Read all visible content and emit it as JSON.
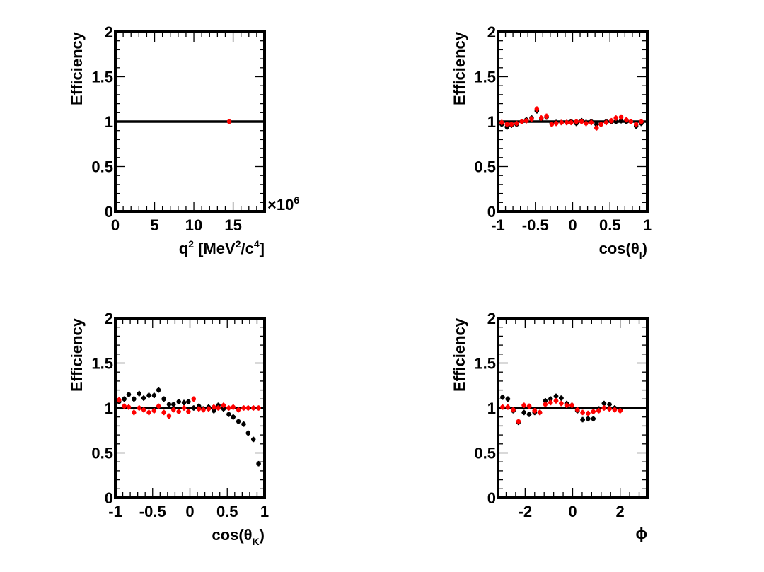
{
  "colors": {
    "series_black": "#000000",
    "series_red": "#ff0000",
    "reference_line": "#000000"
  },
  "chart_data": [
    {
      "type": "scatter",
      "panel": "top-left",
      "ylabel": "Efficiency",
      "xlabel_parts": {
        "base": "q",
        "sup1": "2",
        "mid": " [MeV",
        "sup2": "2",
        "mid2": "/c",
        "sup3": "4",
        "end": "]"
      },
      "x_multiplier_text": {
        "base": "×10",
        "exp": "6"
      },
      "xlim": [
        0,
        19
      ],
      "ylim": [
        0,
        2
      ],
      "x_major_ticks": [
        0,
        5,
        10,
        15
      ],
      "x_tick_labels": [
        "0",
        "5",
        "10",
        "15"
      ],
      "y_major_ticks": [
        0,
        0.5,
        1,
        1.5,
        2
      ],
      "y_tick_labels": [
        "0",
        "0.5",
        "1",
        "1.5",
        "2"
      ],
      "reference_y": 1,
      "series": [
        {
          "color": "#000000",
          "xerr": 0,
          "points": [
            [
              14.5,
              1.0,
              0.0
            ]
          ]
        },
        {
          "color": "#ff0000",
          "xerr": 0,
          "points": [
            [
              14.5,
              1.0,
              0.0
            ]
          ]
        }
      ]
    },
    {
      "type": "scatter",
      "panel": "top-right",
      "ylabel": "Efficiency",
      "xlabel_parts": {
        "base": "cos(θ",
        "sub": "l",
        "end": ")"
      },
      "xlim": [
        -1,
        1
      ],
      "ylim": [
        0,
        2
      ],
      "x_major_ticks": [
        -1,
        -0.5,
        0,
        0.5,
        1
      ],
      "x_tick_labels": [
        "-1",
        "-0.5",
        "0",
        "0.5",
        "1"
      ],
      "y_major_ticks": [
        0,
        0.5,
        1,
        1.5,
        2
      ],
      "y_tick_labels": [
        "0",
        "0.5",
        "1",
        "1.5",
        "2"
      ],
      "reference_y": 1,
      "series": [
        {
          "color": "#000000",
          "xerr": 0.03,
          "points": [
            [
              -0.95,
              0.97,
              0.03
            ],
            [
              -0.88,
              0.94,
              0.03
            ],
            [
              -0.82,
              0.96,
              0.03
            ],
            [
              -0.75,
              0.97,
              0.03
            ],
            [
              -0.68,
              1.0,
              0.03
            ],
            [
              -0.62,
              1.02,
              0.03
            ],
            [
              -0.55,
              1.04,
              0.03
            ],
            [
              -0.48,
              1.12,
              0.03
            ],
            [
              -0.42,
              1.03,
              0.03
            ],
            [
              -0.35,
              1.05,
              0.03
            ],
            [
              -0.28,
              0.98,
              0.03
            ],
            [
              -0.22,
              0.99,
              0.03
            ],
            [
              -0.15,
              0.99,
              0.03
            ],
            [
              -0.08,
              0.99,
              0.03
            ],
            [
              -0.02,
              1.0,
              0.03
            ],
            [
              0.05,
              0.98,
              0.03
            ],
            [
              0.12,
              1.01,
              0.03
            ],
            [
              0.18,
              0.99,
              0.03
            ],
            [
              0.25,
              1.0,
              0.03
            ],
            [
              0.32,
              0.97,
              0.03
            ],
            [
              0.38,
              0.97,
              0.03
            ],
            [
              0.45,
              1.0,
              0.03
            ],
            [
              0.52,
              1.0,
              0.03
            ],
            [
              0.58,
              1.0,
              0.03
            ],
            [
              0.65,
              1.01,
              0.03
            ],
            [
              0.72,
              1.0,
              0.03
            ],
            [
              0.78,
              1.0,
              0.03
            ],
            [
              0.85,
              0.95,
              0.03
            ],
            [
              0.92,
              0.98,
              0.03
            ]
          ]
        },
        {
          "color": "#ff0000",
          "xerr": 0.03,
          "points": [
            [
              -0.95,
              0.99,
              0.03
            ],
            [
              -0.88,
              0.97,
              0.03
            ],
            [
              -0.82,
              0.97,
              0.03
            ],
            [
              -0.75,
              0.98,
              0.03
            ],
            [
              -0.68,
              1.0,
              0.03
            ],
            [
              -0.62,
              1.01,
              0.03
            ],
            [
              -0.55,
              1.03,
              0.03
            ],
            [
              -0.48,
              1.14,
              0.03
            ],
            [
              -0.42,
              1.04,
              0.03
            ],
            [
              -0.35,
              1.06,
              0.03
            ],
            [
              -0.28,
              0.97,
              0.03
            ],
            [
              -0.22,
              0.98,
              0.03
            ],
            [
              -0.15,
              0.99,
              0.03
            ],
            [
              -0.08,
              0.99,
              0.03
            ],
            [
              -0.02,
              0.99,
              0.03
            ],
            [
              0.05,
              1.0,
              0.03
            ],
            [
              0.12,
              1.0,
              0.03
            ],
            [
              0.18,
              0.98,
              0.03
            ],
            [
              0.25,
              0.99,
              0.03
            ],
            [
              0.32,
              0.93,
              0.03
            ],
            [
              0.38,
              0.97,
              0.03
            ],
            [
              0.45,
              0.99,
              0.03
            ],
            [
              0.52,
              1.01,
              0.03
            ],
            [
              0.58,
              1.04,
              0.03
            ],
            [
              0.65,
              1.05,
              0.03
            ],
            [
              0.72,
              1.02,
              0.03
            ],
            [
              0.78,
              1.0,
              0.03
            ],
            [
              0.85,
              0.97,
              0.03
            ],
            [
              0.92,
              1.0,
              0.03
            ]
          ]
        }
      ]
    },
    {
      "type": "scatter",
      "panel": "bottom-left",
      "ylabel": "Efficiency",
      "xlabel_parts": {
        "base": "cos(θ",
        "sub": "K",
        "end": ")"
      },
      "xlim": [
        -1,
        1
      ],
      "ylim": [
        0,
        2
      ],
      "x_major_ticks": [
        -1,
        -0.5,
        0,
        0.5,
        1
      ],
      "x_tick_labels": [
        "-1",
        "-0.5",
        "0",
        "0.5",
        "1"
      ],
      "y_major_ticks": [
        0,
        0.5,
        1,
        1.5,
        2
      ],
      "y_tick_labels": [
        "0",
        "0.5",
        "1",
        "1.5",
        "2"
      ],
      "reference_y": 1,
      "series": [
        {
          "color": "#000000",
          "xerr": 0.03,
          "points": [
            [
              -0.95,
              1.07,
              0.03
            ],
            [
              -0.88,
              1.1,
              0.03
            ],
            [
              -0.82,
              1.15,
              0.03
            ],
            [
              -0.75,
              1.1,
              0.03
            ],
            [
              -0.68,
              1.16,
              0.03
            ],
            [
              -0.62,
              1.11,
              0.03
            ],
            [
              -0.55,
              1.14,
              0.03
            ],
            [
              -0.48,
              1.14,
              0.03
            ],
            [
              -0.42,
              1.2,
              0.03
            ],
            [
              -0.35,
              1.1,
              0.03
            ],
            [
              -0.28,
              1.04,
              0.03
            ],
            [
              -0.22,
              1.04,
              0.03
            ],
            [
              -0.15,
              1.07,
              0.03
            ],
            [
              -0.08,
              1.06,
              0.03
            ],
            [
              -0.02,
              1.07,
              0.03
            ],
            [
              0.05,
              1.0,
              0.03
            ],
            [
              0.12,
              1.02,
              0.03
            ],
            [
              0.18,
              0.99,
              0.03
            ],
            [
              0.25,
              1.01,
              0.03
            ],
            [
              0.32,
              0.97,
              0.03
            ],
            [
              0.38,
              1.03,
              0.03
            ],
            [
              0.45,
              0.99,
              0.03
            ],
            [
              0.52,
              0.93,
              0.03
            ],
            [
              0.58,
              0.9,
              0.03
            ],
            [
              0.65,
              0.85,
              0.03
            ],
            [
              0.72,
              0.82,
              0.03
            ],
            [
              0.78,
              0.72,
              0.03
            ],
            [
              0.85,
              0.65,
              0.03
            ],
            [
              0.92,
              0.38,
              0.03
            ]
          ]
        },
        {
          "color": "#ff0000",
          "xerr": 0.03,
          "points": [
            [
              -0.95,
              1.09,
              0.03
            ],
            [
              -0.88,
              1.02,
              0.03
            ],
            [
              -0.82,
              1.01,
              0.03
            ],
            [
              -0.75,
              0.95,
              0.03
            ],
            [
              -0.68,
              1.0,
              0.03
            ],
            [
              -0.62,
              0.98,
              0.03
            ],
            [
              -0.55,
              0.95,
              0.03
            ],
            [
              -0.48,
              0.97,
              0.03
            ],
            [
              -0.42,
              1.02,
              0.03
            ],
            [
              -0.35,
              0.95,
              0.03
            ],
            [
              -0.28,
              0.91,
              0.03
            ],
            [
              -0.22,
              0.98,
              0.03
            ],
            [
              -0.15,
              0.96,
              0.03
            ],
            [
              -0.08,
              1.0,
              0.03
            ],
            [
              -0.02,
              0.96,
              0.03
            ],
            [
              0.05,
              1.1,
              0.03
            ],
            [
              0.12,
              0.99,
              0.03
            ],
            [
              0.18,
              0.98,
              0.03
            ],
            [
              0.25,
              0.99,
              0.03
            ],
            [
              0.32,
              1.01,
              0.03
            ],
            [
              0.38,
              1.0,
              0.03
            ],
            [
              0.45,
              1.03,
              0.03
            ],
            [
              0.52,
              1.0,
              0.03
            ],
            [
              0.58,
              1.01,
              0.03
            ],
            [
              0.65,
              0.98,
              0.03
            ],
            [
              0.72,
              1.0,
              0.03
            ],
            [
              0.78,
              1.0,
              0.03
            ],
            [
              0.85,
              1.0,
              0.03
            ],
            [
              0.92,
              1.0,
              0.03
            ]
          ]
        }
      ]
    },
    {
      "type": "scatter",
      "panel": "bottom-right",
      "ylabel": "Efficiency",
      "xlabel_parts": {
        "base": "ϕ"
      },
      "xlim": [
        -3.14159,
        3.14159
      ],
      "ylim": [
        0,
        2
      ],
      "x_major_ticks": [
        -2,
        0,
        2
      ],
      "x_tick_labels": [
        "-2",
        "0",
        "2"
      ],
      "y_major_ticks": [
        0,
        0.5,
        1,
        1.5,
        2
      ],
      "y_tick_labels": [
        "0",
        "0.5",
        "1",
        "1.5",
        "2"
      ],
      "reference_y": 1,
      "series": [
        {
          "color": "#000000",
          "xerr": 0.1,
          "points": [
            [
              -2.95,
              1.12,
              0.03
            ],
            [
              -2.73,
              1.1,
              0.03
            ],
            [
              -2.5,
              0.97,
              0.03
            ],
            [
              -2.28,
              0.84,
              0.03
            ],
            [
              -2.05,
              0.95,
              0.03
            ],
            [
              -1.83,
              0.93,
              0.03
            ],
            [
              -1.6,
              0.95,
              0.03
            ],
            [
              -1.38,
              0.95,
              0.03
            ],
            [
              -1.15,
              1.08,
              0.03
            ],
            [
              -0.93,
              1.1,
              0.03
            ],
            [
              -0.7,
              1.13,
              0.03
            ],
            [
              -0.48,
              1.11,
              0.03
            ],
            [
              -0.25,
              1.05,
              0.03
            ],
            [
              -0.03,
              1.03,
              0.03
            ],
            [
              0.2,
              0.97,
              0.03
            ],
            [
              0.42,
              0.87,
              0.03
            ],
            [
              0.65,
              0.88,
              0.03
            ],
            [
              0.87,
              0.88,
              0.03
            ],
            [
              1.1,
              0.99,
              0.03
            ],
            [
              1.32,
              1.05,
              0.03
            ],
            [
              1.55,
              1.04,
              0.03
            ],
            [
              1.77,
              1.0,
              0.03
            ],
            [
              2.0,
              0.98,
              0.03
            ]
          ]
        },
        {
          "color": "#ff0000",
          "xerr": 0.1,
          "points": [
            [
              -2.95,
              1.01,
              0.03
            ],
            [
              -2.73,
              1.01,
              0.03
            ],
            [
              -2.5,
              0.98,
              0.03
            ],
            [
              -2.28,
              0.85,
              0.03
            ],
            [
              -2.05,
              1.03,
              0.03
            ],
            [
              -1.83,
              1.02,
              0.03
            ],
            [
              -1.6,
              0.97,
              0.03
            ],
            [
              -1.38,
              0.95,
              0.03
            ],
            [
              -1.15,
              1.04,
              0.03
            ],
            [
              -0.93,
              1.06,
              0.03
            ],
            [
              -0.7,
              1.08,
              0.03
            ],
            [
              -0.48,
              1.05,
              0.03
            ],
            [
              -0.25,
              1.03,
              0.03
            ],
            [
              -0.03,
              1.03,
              0.03
            ],
            [
              0.2,
              0.98,
              0.03
            ],
            [
              0.42,
              0.95,
              0.03
            ],
            [
              0.65,
              0.94,
              0.03
            ],
            [
              0.87,
              0.96,
              0.03
            ],
            [
              1.1,
              0.97,
              0.03
            ],
            [
              1.32,
              1.0,
              0.03
            ],
            [
              1.55,
              0.99,
              0.03
            ],
            [
              1.77,
              0.98,
              0.03
            ],
            [
              2.0,
              0.97,
              0.03
            ]
          ]
        }
      ]
    }
  ]
}
